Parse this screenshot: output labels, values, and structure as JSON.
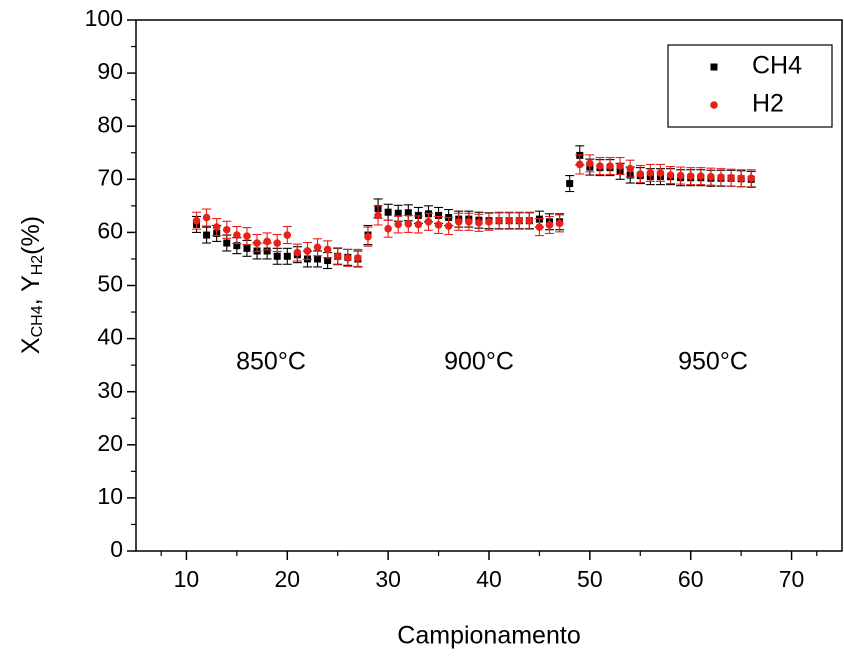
{
  "chart_data": {
    "type": "scatter",
    "xlabel": "Campionamento",
    "ylabel": [
      "X",
      "CH4",
      ", Y",
      "H2",
      "(%)"
    ],
    "annotations": [
      "850°C",
      "900°C",
      "950°C"
    ],
    "x": [
      11,
      12,
      13,
      14,
      15,
      16,
      17,
      18,
      19,
      20,
      21,
      22,
      23,
      24,
      25,
      26,
      27,
      28,
      29,
      30,
      31,
      32,
      33,
      34,
      35,
      36,
      37,
      38,
      39,
      40,
      41,
      42,
      43,
      44,
      45,
      46,
      47,
      48,
      49,
      50,
      51,
      52,
      53,
      54,
      55,
      56,
      57,
      58,
      59,
      60,
      61,
      62,
      63,
      64,
      65,
      66
    ],
    "series": [
      {
        "name": "CH4",
        "color": "#000000",
        "marker": "square",
        "values": [
          61.5,
          59.5,
          59.8,
          58,
          57.5,
          57,
          56.5,
          56.5,
          55.5,
          55.5,
          55.8,
          55,
          55,
          54.7,
          55.5,
          55.3,
          55,
          59.5,
          64.5,
          63.8,
          63.6,
          63.7,
          63.2,
          63.5,
          63.2,
          62.8,
          62.5,
          62.5,
          62.3,
          62.2,
          62.2,
          62.2,
          62.2,
          62.2,
          62.5,
          62,
          62,
          69.2,
          74.5,
          72.3,
          72.2,
          72.2,
          71.5,
          70.8,
          70.7,
          70.5,
          70.5,
          70.5,
          70.3,
          70.3,
          70.3,
          70.2,
          70.2,
          70.2,
          70.1,
          70
        ],
        "errors": [
          1.5,
          1.5,
          1.5,
          1.5,
          1.5,
          1.5,
          1.5,
          1.5,
          1.5,
          1.5,
          1.5,
          1.5,
          1.5,
          1.5,
          1.5,
          1.5,
          1.5,
          1.8,
          1.8,
          1.5,
          1.5,
          1.5,
          1.5,
          1.5,
          1.5,
          1.5,
          1.5,
          1.5,
          1.5,
          1.5,
          1.5,
          1.5,
          1.5,
          1.5,
          1.5,
          1.5,
          1.5,
          1.5,
          1.8,
          1.5,
          1.5,
          1.5,
          1.5,
          1.5,
          1.5,
          1.5,
          1.5,
          1.5,
          1.5,
          1.5,
          1.5,
          1.5,
          1.5,
          1.5,
          1.5,
          1.5
        ]
      },
      {
        "name": "H2",
        "color": "#e8201a",
        "marker": "circle",
        "values": [
          62.2,
          62.8,
          61,
          60.5,
          59.5,
          59.3,
          58,
          58.3,
          58,
          59.5,
          56.2,
          56.5,
          57.2,
          56.8,
          55.5,
          55.2,
          55.2,
          59.2,
          63.2,
          60.7,
          61.5,
          61.6,
          61.5,
          62,
          61.4,
          61.2,
          62,
          62,
          61.8,
          62,
          62.2,
          62.2,
          62.2,
          62.2,
          61,
          61.4,
          61.7,
          null,
          72.8,
          73,
          72.5,
          72.5,
          72.5,
          72,
          71,
          71.2,
          71.2,
          70.8,
          70.7,
          70.6,
          70.6,
          70.5,
          70.4,
          70.3,
          70.2,
          70.2
        ],
        "errors": [
          1.6,
          1.6,
          1.6,
          1.6,
          1.6,
          1.6,
          1.6,
          1.6,
          1.6,
          1.6,
          1.6,
          1.6,
          1.6,
          1.6,
          1.6,
          1.6,
          1.6,
          1.8,
          1.8,
          1.6,
          1.6,
          1.6,
          1.6,
          1.6,
          1.6,
          1.6,
          1.6,
          1.6,
          1.6,
          1.6,
          1.6,
          1.6,
          1.6,
          1.6,
          1.6,
          1.6,
          1.6,
          null,
          1.8,
          1.6,
          1.6,
          1.6,
          1.6,
          1.6,
          1.6,
          1.6,
          1.6,
          1.6,
          1.6,
          1.6,
          1.6,
          1.6,
          1.6,
          1.6,
          1.6,
          1.6
        ]
      }
    ],
    "xlim": [
      5,
      75
    ],
    "xticks": [
      10,
      20,
      30,
      40,
      50,
      60,
      70
    ],
    "ylim": [
      0,
      100
    ],
    "yticks": [
      0,
      10,
      20,
      30,
      40,
      50,
      60,
      70,
      80,
      90,
      100
    ],
    "grid": false,
    "legend": "top-right"
  }
}
